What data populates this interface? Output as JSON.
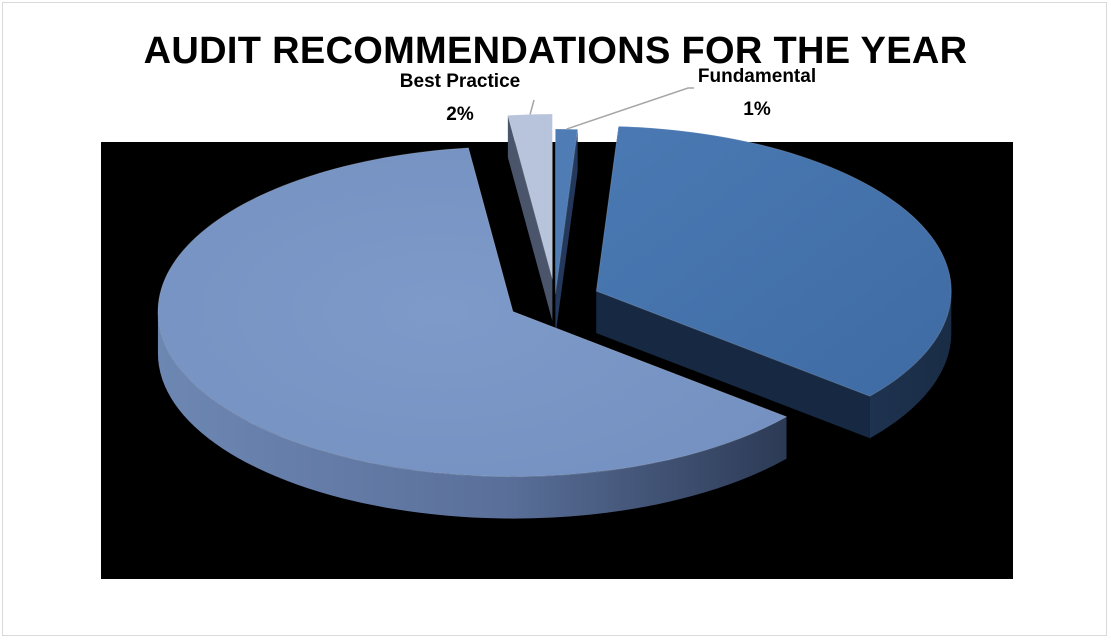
{
  "chart_data": {
    "type": "pie",
    "title": "AUDIT RECOMMENDATIONS FOR THE YEAR",
    "slices": [
      {
        "name": "Fundamental",
        "label": "Fundamental",
        "percent_label": "1%",
        "value": 1,
        "color": "#4572a7"
      },
      {
        "name": "",
        "label": "",
        "percent_label": "",
        "value": 35,
        "color": "#4a78b0"
      },
      {
        "name": "",
        "label": "",
        "percent_label": "",
        "value": 62,
        "color": "#7b97c6"
      },
      {
        "name": "Best Practice",
        "label": "Best Practice",
        "percent_label": "2%",
        "value": 2,
        "color": "#b8c6dd"
      }
    ],
    "legend": "none",
    "style": "3d-exploded"
  }
}
